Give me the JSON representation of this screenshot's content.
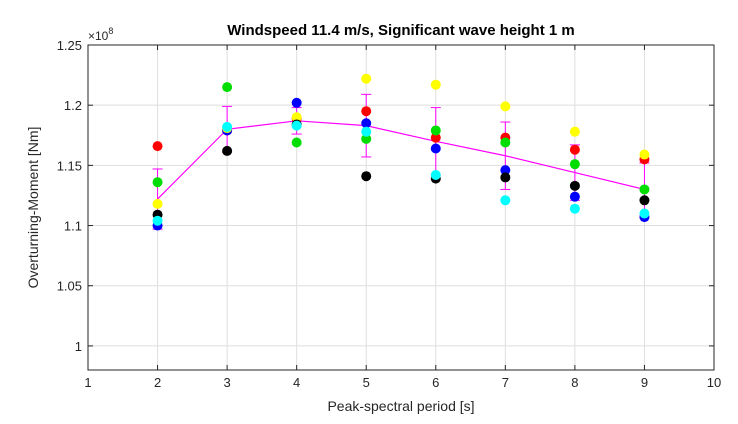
{
  "chart_data": {
    "type": "scatter",
    "title": "Windspeed 11.4 m/s, Significant wave height 1 m",
    "xlabel": "Peak-spectral period [s]",
    "ylabel": "Overturning-Moment [Nm]",
    "y_exponent_base": "×10",
    "y_exponent_power": "8",
    "xlim": [
      1,
      10
    ],
    "ylim": [
      0.98,
      1.25
    ],
    "x_ticks": [
      1,
      2,
      3,
      4,
      5,
      6,
      7,
      8,
      9,
      10
    ],
    "x_tick_labels": [
      "1",
      "2",
      "3",
      "4",
      "5",
      "6",
      "7",
      "8",
      "9",
      "10"
    ],
    "y_ticks": [
      1.0,
      1.05,
      1.1,
      1.15,
      1.2,
      1.25
    ],
    "y_tick_labels": [
      "1",
      "1.05",
      "1.1",
      "1.15",
      "1.2",
      "1.25"
    ],
    "grid": true,
    "x": [
      2,
      3,
      4,
      5,
      6,
      7,
      8,
      9
    ],
    "series": [
      {
        "color": "#ff0000",
        "values": [
          1.166,
          1.179,
          1.189,
          1.195,
          1.173,
          1.173,
          1.163,
          1.155
        ]
      },
      {
        "color": "#00dd00",
        "values": [
          1.136,
          1.215,
          1.169,
          1.172,
          1.179,
          1.169,
          1.151,
          1.13
        ]
      },
      {
        "color": "#0000ff",
        "values": [
          1.1,
          1.179,
          1.202,
          1.185,
          1.164,
          1.146,
          1.124,
          1.107
        ]
      },
      {
        "color": "#ffff00",
        "values": [
          1.118,
          1.181,
          1.19,
          1.222,
          1.217,
          1.199,
          1.178,
          1.159
        ]
      },
      {
        "color": "#000000",
        "values": [
          1.109,
          1.162,
          1.184,
          1.141,
          1.139,
          1.14,
          1.133,
          1.121
        ]
      },
      {
        "color": "#00ffff",
        "values": [
          1.104,
          1.182,
          1.183,
          1.178,
          1.142,
          1.121,
          1.114,
          1.11
        ]
      }
    ],
    "mean_line": {
      "color": "#ff00ff",
      "values": [
        1.122,
        1.18,
        1.187,
        1.183,
        1.17,
        1.158,
        1.144,
        1.13
      ],
      "error": [
        0.025,
        0.019,
        0.011,
        0.026,
        0.028,
        0.028,
        0.023,
        0.022
      ]
    }
  }
}
